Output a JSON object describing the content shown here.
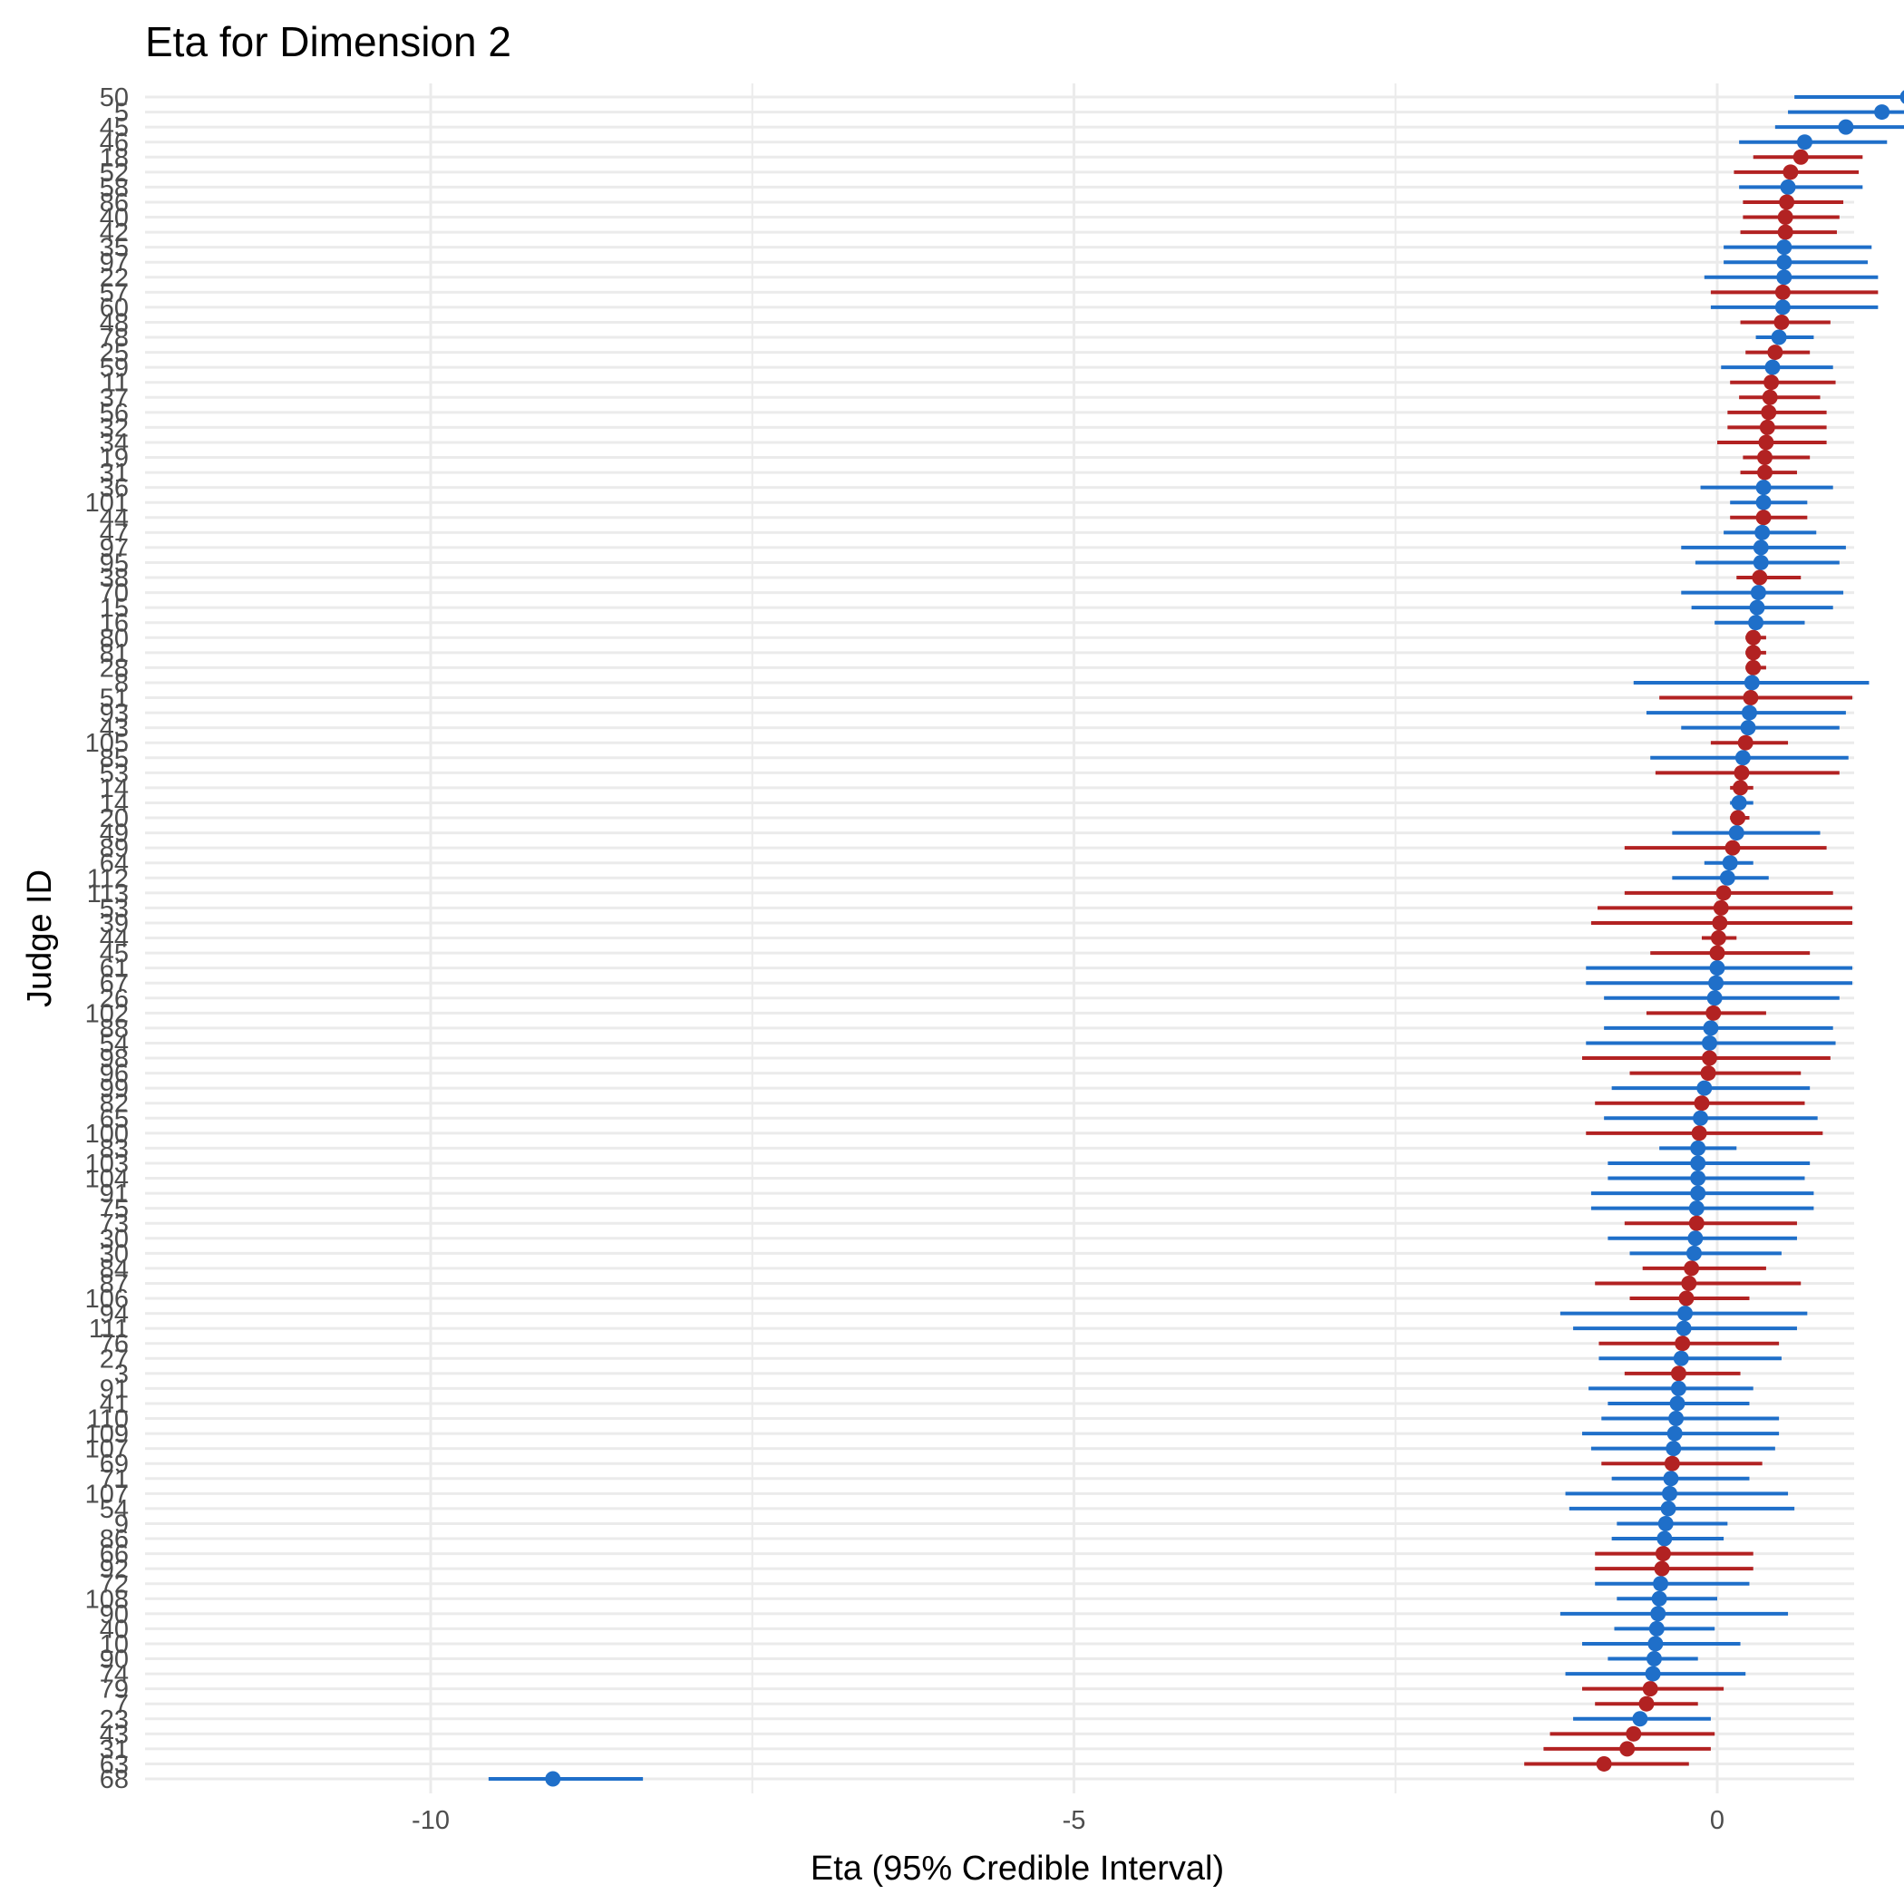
{
  "chart_data": {
    "type": "dot-interval",
    "title": "Eta for Dimension 2",
    "xlabel": "Eta (95% Credible Interval)",
    "ylabel": "Judge ID",
    "xlim": [
      -10.5,
      3.5
    ],
    "x_ticks": [
      -10,
      -5,
      0
    ],
    "grid": true,
    "legend": "none",
    "colors": {
      "blue": "#1f6fc9",
      "red": "#b22222",
      "grid": "#ebebeb"
    },
    "points": [
      {
        "id": "50",
        "est": 1.48,
        "lo": 0.6,
        "hi": 2.8,
        "color": "blue"
      },
      {
        "id": "5",
        "est": 1.28,
        "lo": 0.55,
        "hi": 2.35,
        "color": "blue"
      },
      {
        "id": "45",
        "est": 1.0,
        "lo": 0.45,
        "hi": 2.05,
        "color": "blue"
      },
      {
        "id": "46",
        "est": 0.68,
        "lo": 0.17,
        "hi": 1.32,
        "color": "blue"
      },
      {
        "id": "18",
        "est": 0.65,
        "lo": 0.28,
        "hi": 1.13,
        "color": "red"
      },
      {
        "id": "52",
        "est": 0.57,
        "lo": 0.13,
        "hi": 1.1,
        "color": "red"
      },
      {
        "id": "58",
        "est": 0.55,
        "lo": 0.17,
        "hi": 1.13,
        "color": "blue"
      },
      {
        "id": "86",
        "est": 0.54,
        "lo": 0.2,
        "hi": 0.98,
        "color": "red"
      },
      {
        "id": "40",
        "est": 0.53,
        "lo": 0.2,
        "hi": 0.95,
        "color": "red"
      },
      {
        "id": "42",
        "est": 0.53,
        "lo": 0.18,
        "hi": 0.93,
        "color": "red"
      },
      {
        "id": "35",
        "est": 0.52,
        "lo": 0.05,
        "hi": 1.2,
        "color": "blue"
      },
      {
        "id": "97",
        "est": 0.52,
        "lo": 0.05,
        "hi": 1.17,
        "color": "blue"
      },
      {
        "id": "22",
        "est": 0.52,
        "lo": -0.1,
        "hi": 1.25,
        "color": "blue"
      },
      {
        "id": "57",
        "est": 0.51,
        "lo": -0.05,
        "hi": 1.25,
        "color": "red"
      },
      {
        "id": "60",
        "est": 0.51,
        "lo": -0.05,
        "hi": 1.25,
        "color": "blue"
      },
      {
        "id": "48",
        "est": 0.5,
        "lo": 0.18,
        "hi": 0.88,
        "color": "red"
      },
      {
        "id": "78",
        "est": 0.48,
        "lo": 0.3,
        "hi": 0.75,
        "color": "blue"
      },
      {
        "id": "25",
        "est": 0.45,
        "lo": 0.22,
        "hi": 0.72,
        "color": "red"
      },
      {
        "id": "59",
        "est": 0.43,
        "lo": 0.03,
        "hi": 0.9,
        "color": "blue"
      },
      {
        "id": "11",
        "est": 0.42,
        "lo": 0.1,
        "hi": 0.92,
        "color": "red"
      },
      {
        "id": "37",
        "est": 0.41,
        "lo": 0.17,
        "hi": 0.8,
        "color": "red"
      },
      {
        "id": "56",
        "est": 0.4,
        "lo": 0.08,
        "hi": 0.85,
        "color": "red"
      },
      {
        "id": "32",
        "est": 0.39,
        "lo": 0.08,
        "hi": 0.85,
        "color": "red"
      },
      {
        "id": "34",
        "est": 0.38,
        "lo": 0.0,
        "hi": 0.85,
        "color": "red"
      },
      {
        "id": "19",
        "est": 0.37,
        "lo": 0.2,
        "hi": 0.72,
        "color": "red"
      },
      {
        "id": "31",
        "est": 0.37,
        "lo": 0.18,
        "hi": 0.62,
        "color": "red"
      },
      {
        "id": "36",
        "est": 0.36,
        "lo": -0.13,
        "hi": 0.9,
        "color": "blue"
      },
      {
        "id": "101",
        "est": 0.36,
        "lo": 0.1,
        "hi": 0.7,
        "color": "blue"
      },
      {
        "id": "44",
        "est": 0.36,
        "lo": 0.1,
        "hi": 0.7,
        "color": "red"
      },
      {
        "id": "47",
        "est": 0.35,
        "lo": 0.05,
        "hi": 0.77,
        "color": "blue"
      },
      {
        "id": "97b",
        "label": "97",
        "est": 0.34,
        "lo": -0.28,
        "hi": 1.0,
        "color": "blue"
      },
      {
        "id": "95",
        "est": 0.34,
        "lo": -0.17,
        "hi": 0.95,
        "color": "blue"
      },
      {
        "id": "38",
        "est": 0.33,
        "lo": 0.15,
        "hi": 0.65,
        "color": "red"
      },
      {
        "id": "70",
        "est": 0.32,
        "lo": -0.28,
        "hi": 0.98,
        "color": "blue"
      },
      {
        "id": "15",
        "est": 0.31,
        "lo": -0.2,
        "hi": 0.9,
        "color": "blue"
      },
      {
        "id": "16",
        "est": 0.3,
        "lo": -0.02,
        "hi": 0.68,
        "color": "blue"
      },
      {
        "id": "80",
        "est": 0.28,
        "lo": 0.22,
        "hi": 0.38,
        "color": "red"
      },
      {
        "id": "81",
        "est": 0.28,
        "lo": 0.22,
        "hi": 0.38,
        "color": "red"
      },
      {
        "id": "28",
        "est": 0.28,
        "lo": 0.22,
        "hi": 0.38,
        "color": "red"
      },
      {
        "id": "8",
        "est": 0.27,
        "lo": -0.65,
        "hi": 1.18,
        "color": "blue"
      },
      {
        "id": "51",
        "est": 0.26,
        "lo": -0.45,
        "hi": 1.05,
        "color": "red"
      },
      {
        "id": "93",
        "est": 0.25,
        "lo": -0.55,
        "hi": 1.0,
        "color": "blue"
      },
      {
        "id": "43",
        "est": 0.24,
        "lo": -0.28,
        "hi": 0.95,
        "color": "blue"
      },
      {
        "id": "105",
        "est": 0.22,
        "lo": -0.05,
        "hi": 0.55,
        "color": "red"
      },
      {
        "id": "85",
        "est": 0.2,
        "lo": -0.52,
        "hi": 1.02,
        "color": "blue"
      },
      {
        "id": "53",
        "est": 0.19,
        "lo": -0.48,
        "hi": 0.95,
        "color": "red"
      },
      {
        "id": "14",
        "est": 0.18,
        "lo": 0.1,
        "hi": 0.28,
        "color": "red"
      },
      {
        "id": "14b",
        "label": "14",
        "est": 0.17,
        "lo": 0.1,
        "hi": 0.28,
        "color": "blue"
      },
      {
        "id": "20",
        "est": 0.16,
        "lo": 0.1,
        "hi": 0.25,
        "color": "red"
      },
      {
        "id": "49",
        "est": 0.15,
        "lo": -0.35,
        "hi": 0.8,
        "color": "blue"
      },
      {
        "id": "89",
        "est": 0.12,
        "lo": -0.72,
        "hi": 0.85,
        "color": "red"
      },
      {
        "id": "64",
        "est": 0.1,
        "lo": -0.1,
        "hi": 0.28,
        "color": "blue"
      },
      {
        "id": "112",
        "est": 0.08,
        "lo": -0.35,
        "hi": 0.4,
        "color": "blue"
      },
      {
        "id": "113",
        "est": 0.05,
        "lo": -0.72,
        "hi": 0.9,
        "color": "red"
      },
      {
        "id": "53b",
        "label": "53",
        "est": 0.03,
        "lo": -0.93,
        "hi": 1.05,
        "color": "red"
      },
      {
        "id": "39",
        "est": 0.02,
        "lo": -0.98,
        "hi": 1.05,
        "color": "red"
      },
      {
        "id": "44b",
        "label": "44",
        "est": 0.01,
        "lo": -0.12,
        "hi": 0.15,
        "color": "red"
      },
      {
        "id": "45b",
        "label": "45",
        "est": 0.0,
        "lo": -0.52,
        "hi": 0.72,
        "color": "red"
      },
      {
        "id": "61",
        "est": 0.0,
        "lo": -1.02,
        "hi": 1.05,
        "color": "blue"
      },
      {
        "id": "67",
        "est": -0.01,
        "lo": -1.02,
        "hi": 1.05,
        "color": "blue"
      },
      {
        "id": "26",
        "est": -0.02,
        "lo": -0.88,
        "hi": 0.95,
        "color": "blue"
      },
      {
        "id": "102",
        "est": -0.03,
        "lo": -0.55,
        "hi": 0.38,
        "color": "red"
      },
      {
        "id": "88",
        "est": -0.05,
        "lo": -0.88,
        "hi": 0.9,
        "color": "blue"
      },
      {
        "id": "54",
        "est": -0.06,
        "lo": -1.02,
        "hi": 0.92,
        "color": "blue"
      },
      {
        "id": "98",
        "est": -0.06,
        "lo": -1.05,
        "hi": 0.88,
        "color": "red"
      },
      {
        "id": "96",
        "est": -0.07,
        "lo": -0.68,
        "hi": 0.65,
        "color": "red"
      },
      {
        "id": "99",
        "est": -0.1,
        "lo": -0.82,
        "hi": 0.72,
        "color": "blue"
      },
      {
        "id": "82",
        "est": -0.12,
        "lo": -0.95,
        "hi": 0.68,
        "color": "red"
      },
      {
        "id": "65",
        "est": -0.13,
        "lo": -0.88,
        "hi": 0.78,
        "color": "blue"
      },
      {
        "id": "100",
        "est": -0.14,
        "lo": -1.02,
        "hi": 0.82,
        "color": "red"
      },
      {
        "id": "83",
        "est": -0.15,
        "lo": -0.45,
        "hi": 0.15,
        "color": "blue"
      },
      {
        "id": "103",
        "est": -0.15,
        "lo": -0.85,
        "hi": 0.72,
        "color": "blue"
      },
      {
        "id": "104",
        "est": -0.15,
        "lo": -0.85,
        "hi": 0.68,
        "color": "blue"
      },
      {
        "id": "91",
        "est": -0.15,
        "lo": -0.98,
        "hi": 0.75,
        "color": "blue"
      },
      {
        "id": "75",
        "est": -0.16,
        "lo": -0.98,
        "hi": 0.75,
        "color": "blue"
      },
      {
        "id": "73",
        "est": -0.16,
        "lo": -0.72,
        "hi": 0.62,
        "color": "red"
      },
      {
        "id": "30",
        "est": -0.17,
        "lo": -0.85,
        "hi": 0.62,
        "color": "blue"
      },
      {
        "id": "30b",
        "label": "30",
        "est": -0.18,
        "lo": -0.68,
        "hi": 0.5,
        "color": "blue"
      },
      {
        "id": "84",
        "est": -0.2,
        "lo": -0.58,
        "hi": 0.38,
        "color": "red"
      },
      {
        "id": "87",
        "est": -0.22,
        "lo": -0.95,
        "hi": 0.65,
        "color": "red"
      },
      {
        "id": "106",
        "est": -0.24,
        "lo": -0.68,
        "hi": 0.25,
        "color": "red"
      },
      {
        "id": "94",
        "est": -0.25,
        "lo": -1.22,
        "hi": 0.7,
        "color": "blue"
      },
      {
        "id": "111",
        "est": -0.26,
        "lo": -1.12,
        "hi": 0.62,
        "color": "blue"
      },
      {
        "id": "76",
        "est": -0.27,
        "lo": -0.92,
        "hi": 0.48,
        "color": "red"
      },
      {
        "id": "27",
        "est": -0.28,
        "lo": -0.92,
        "hi": 0.5,
        "color": "blue"
      },
      {
        "id": "3",
        "est": -0.3,
        "lo": -0.72,
        "hi": 0.18,
        "color": "red"
      },
      {
        "id": "91b",
        "label": "91",
        "est": -0.3,
        "lo": -1.0,
        "hi": 0.28,
        "color": "blue"
      },
      {
        "id": "41",
        "est": -0.31,
        "lo": -0.85,
        "hi": 0.25,
        "color": "blue"
      },
      {
        "id": "110",
        "est": -0.32,
        "lo": -0.9,
        "hi": 0.48,
        "color": "blue"
      },
      {
        "id": "109",
        "est": -0.33,
        "lo": -1.05,
        "hi": 0.48,
        "color": "blue"
      },
      {
        "id": "107",
        "est": -0.34,
        "lo": -0.98,
        "hi": 0.45,
        "color": "blue"
      },
      {
        "id": "69",
        "est": -0.35,
        "lo": -0.9,
        "hi": 0.35,
        "color": "red"
      },
      {
        "id": "71",
        "est": -0.36,
        "lo": -0.82,
        "hi": 0.25,
        "color": "blue"
      },
      {
        "id": "107b",
        "label": "107",
        "est": -0.37,
        "lo": -1.18,
        "hi": 0.55,
        "color": "blue"
      },
      {
        "id": "54b",
        "label": "54",
        "est": -0.38,
        "lo": -1.15,
        "hi": 0.6,
        "color": "blue"
      },
      {
        "id": "9",
        "est": -0.4,
        "lo": -0.78,
        "hi": 0.08,
        "color": "blue"
      },
      {
        "id": "86b",
        "label": "86",
        "est": -0.41,
        "lo": -0.82,
        "hi": 0.05,
        "color": "blue"
      },
      {
        "id": "66",
        "est": -0.42,
        "lo": -0.95,
        "hi": 0.28,
        "color": "red"
      },
      {
        "id": "92",
        "est": -0.43,
        "lo": -0.95,
        "hi": 0.28,
        "color": "red"
      },
      {
        "id": "72",
        "est": -0.44,
        "lo": -0.95,
        "hi": 0.25,
        "color": "blue"
      },
      {
        "id": "108",
        "est": -0.45,
        "lo": -0.78,
        "hi": 0.0,
        "color": "blue"
      },
      {
        "id": "90",
        "est": -0.46,
        "lo": -1.22,
        "hi": 0.55,
        "color": "blue"
      },
      {
        "id": "40b",
        "label": "40",
        "est": -0.47,
        "lo": -0.8,
        "hi": -0.02,
        "color": "blue"
      },
      {
        "id": "10",
        "est": -0.48,
        "lo": -1.05,
        "hi": 0.18,
        "color": "blue"
      },
      {
        "id": "90b",
        "label": "90",
        "est": -0.49,
        "lo": -0.85,
        "hi": -0.15,
        "color": "blue"
      },
      {
        "id": "74",
        "est": -0.5,
        "lo": -1.18,
        "hi": 0.22,
        "color": "blue"
      },
      {
        "id": "79",
        "est": -0.52,
        "lo": -1.05,
        "hi": 0.05,
        "color": "red"
      },
      {
        "id": "7",
        "est": -0.55,
        "lo": -0.95,
        "hi": -0.15,
        "color": "red"
      },
      {
        "id": "23",
        "est": -0.6,
        "lo": -1.12,
        "hi": -0.05,
        "color": "blue"
      },
      {
        "id": "43b",
        "label": "43",
        "est": -0.65,
        "lo": -1.3,
        "hi": -0.02,
        "color": "red"
      },
      {
        "id": "31b",
        "label": "31",
        "est": -0.7,
        "lo": -1.35,
        "hi": -0.05,
        "color": "red"
      },
      {
        "id": "63",
        "est": -0.88,
        "lo": -1.5,
        "hi": -0.22,
        "color": "red"
      },
      {
        "id": "68",
        "est": -9.05,
        "lo": -9.55,
        "hi": -8.35,
        "color": "blue"
      }
    ]
  }
}
